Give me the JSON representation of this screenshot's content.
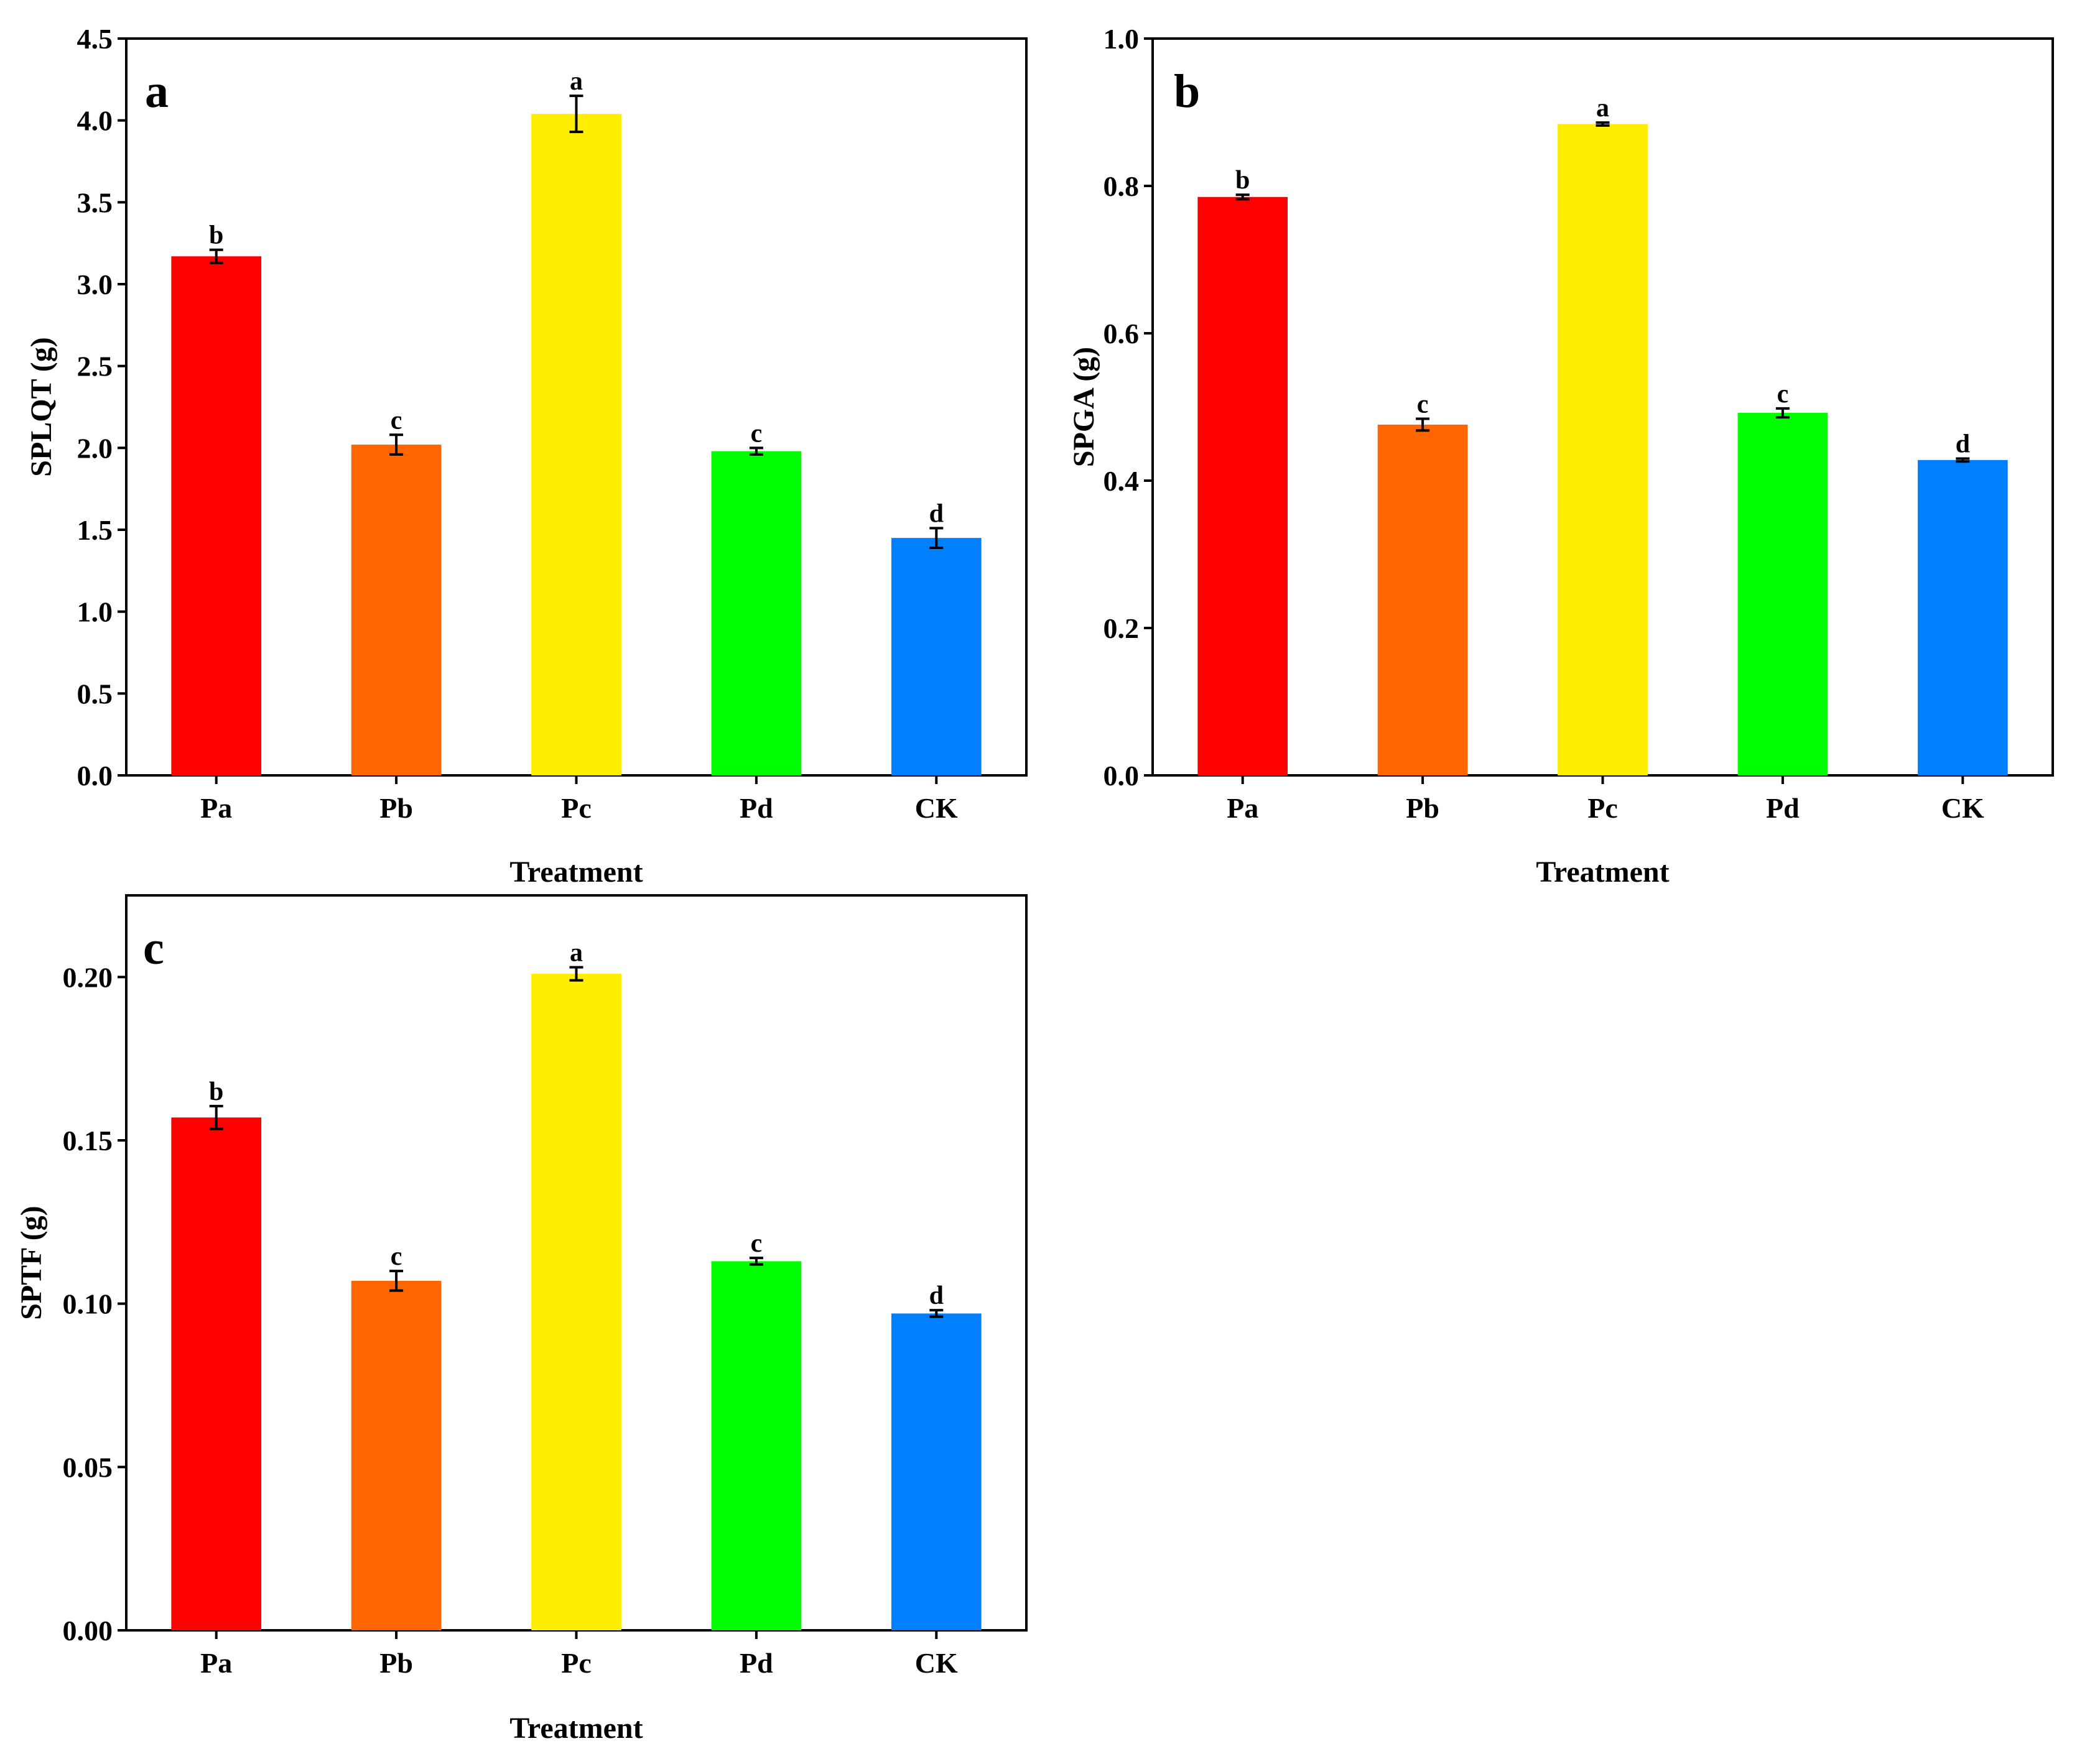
{
  "chart_data": [
    {
      "type": "bar",
      "panel": "a",
      "categories": [
        "Pa",
        "Pb",
        "Pc",
        "Pd",
        "CK"
      ],
      "values": [
        3.17,
        2.02,
        4.04,
        1.98,
        1.45
      ],
      "errors": [
        0.04,
        0.06,
        0.11,
        0.02,
        0.06
      ],
      "significance": [
        "b",
        "c",
        "a",
        "c",
        "d"
      ],
      "colors": [
        "#ff0000",
        "#ff6600",
        "#ffee00",
        "#00ff00",
        "#0080ff"
      ],
      "xlabel": "Treatment",
      "ylabel": "SPLQT (g)",
      "ylim": [
        0,
        4.5
      ],
      "yticks": [
        0.0,
        0.5,
        1.0,
        1.5,
        2.0,
        2.5,
        3.0,
        3.5,
        4.0,
        4.5
      ],
      "ytick_labels": [
        "0.0",
        "0.5",
        "1.0",
        "1.5",
        "2.0",
        "2.5",
        "3.0",
        "3.5",
        "4.0",
        "4.5"
      ],
      "grid": false
    },
    {
      "type": "bar",
      "panel": "b",
      "categories": [
        "Pa",
        "Pb",
        "Pc",
        "Pd",
        "CK"
      ],
      "values": [
        0.785,
        0.476,
        0.884,
        0.492,
        0.428
      ],
      "errors": [
        0.003,
        0.008,
        0.002,
        0.006,
        0.002
      ],
      "significance": [
        "b",
        "c",
        "a",
        "c",
        "d"
      ],
      "colors": [
        "#ff0000",
        "#ff6600",
        "#ffee00",
        "#00ff00",
        "#0080ff"
      ],
      "xlabel": "Treatment",
      "ylabel": "SPGA (g)",
      "ylim": [
        0,
        1.0
      ],
      "yticks": [
        0.0,
        0.2,
        0.4,
        0.6,
        0.8,
        1.0
      ],
      "ytick_labels": [
        "0.0",
        "0.2",
        "0.4",
        "0.6",
        "0.8",
        "1.0"
      ],
      "grid": false
    },
    {
      "type": "bar",
      "panel": "c",
      "categories": [
        "Pa",
        "Pb",
        "Pc",
        "Pd",
        "CK"
      ],
      "values": [
        0.157,
        0.107,
        0.201,
        0.113,
        0.097
      ],
      "errors": [
        0.0035,
        0.003,
        0.002,
        0.001,
        0.001
      ],
      "significance": [
        "b",
        "c",
        "a",
        "c",
        "d"
      ],
      "colors": [
        "#ff0000",
        "#ff6600",
        "#ffee00",
        "#00ff00",
        "#0080ff"
      ],
      "xlabel": "Treatment",
      "ylabel": "SPTF (g)",
      "ylim": [
        0,
        0.225
      ],
      "yticks": [
        0.0,
        0.05,
        0.1,
        0.15,
        0.2
      ],
      "ytick_labels": [
        "0.00",
        "0.05",
        "0.10",
        "0.15",
        "0.20"
      ],
      "grid": false
    }
  ]
}
